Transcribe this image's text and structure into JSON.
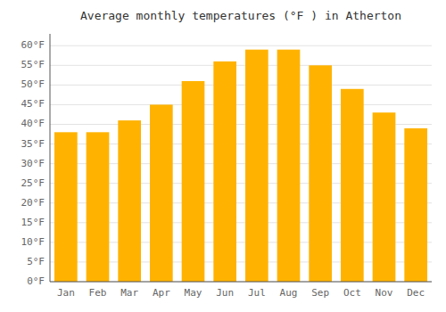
{
  "chart_data": {
    "type": "bar",
    "title": "Average monthly temperatures (°F ) in Atherton",
    "categories": [
      "Jan",
      "Feb",
      "Mar",
      "Apr",
      "May",
      "Jun",
      "Jul",
      "Aug",
      "Sep",
      "Oct",
      "Nov",
      "Dec"
    ],
    "values": [
      38,
      38,
      41,
      45,
      51,
      56,
      59,
      59,
      55,
      49,
      43,
      39
    ],
    "color": "#FFB300",
    "ylim": [
      0,
      63
    ],
    "yticks": [
      {
        "value": 0,
        "label": "0°F"
      },
      {
        "value": 5,
        "label": "5°F"
      },
      {
        "value": 10,
        "label": "10°F"
      },
      {
        "value": 15,
        "label": "15°F"
      },
      {
        "value": 20,
        "label": "20°F"
      },
      {
        "value": 25,
        "label": "25°F"
      },
      {
        "value": 30,
        "label": "30°F"
      },
      {
        "value": 35,
        "label": "35°F"
      },
      {
        "value": 40,
        "label": "40°F"
      },
      {
        "value": 45,
        "label": "45°F"
      },
      {
        "value": 50,
        "label": "50°F"
      },
      {
        "value": 55,
        "label": "55°F"
      },
      {
        "value": 60,
        "label": "60°F"
      }
    ],
    "grid": true
  }
}
